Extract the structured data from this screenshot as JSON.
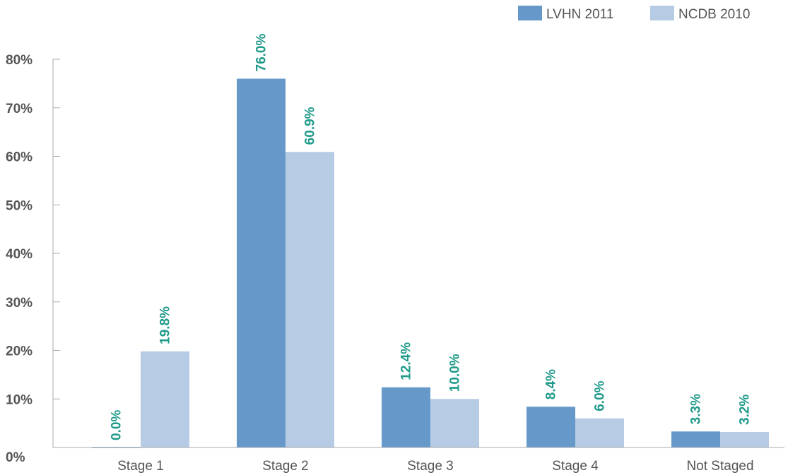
{
  "chart_data": {
    "type": "bar",
    "categories": [
      "Stage 1",
      "Stage 2",
      "Stage 3",
      "Stage 4",
      "Not Staged"
    ],
    "series": [
      {
        "name": "LVHN 2011",
        "values": [
          0.0,
          76.0,
          12.4,
          8.4,
          3.3
        ],
        "labels": [
          "0.0%",
          "76.0%",
          "12.4%",
          "8.4%",
          "3.3%"
        ],
        "color": "#6699c9"
      },
      {
        "name": "NCDB 2010",
        "values": [
          19.8,
          60.9,
          10.0,
          6.0,
          3.2
        ],
        "labels": [
          "19.8%",
          "60.9%",
          "10.0%",
          "6.0%",
          "3.2%"
        ],
        "color": "#b5cce4"
      }
    ],
    "yticks": [
      0,
      10,
      20,
      30,
      40,
      50,
      60,
      70,
      80
    ],
    "ytick_labels": [
      "0%",
      "10%",
      "20%",
      "30%",
      "40%",
      "50%",
      "60%",
      "70%",
      "80%"
    ],
    "ylim": [
      0,
      80
    ],
    "legend_position": "top-right",
    "grid": false,
    "label_color": "#1f9a8a"
  }
}
